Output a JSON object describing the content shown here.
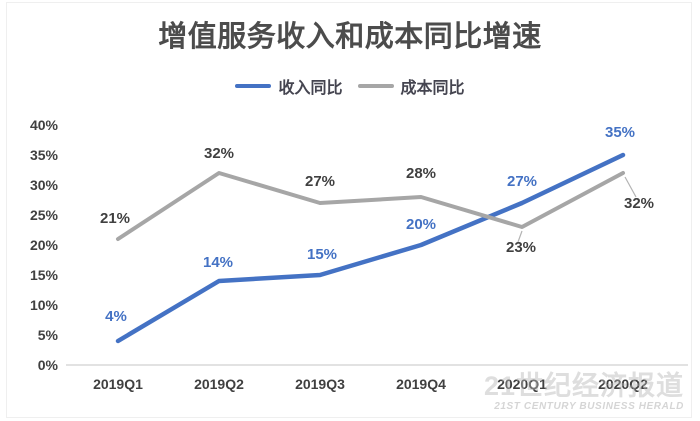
{
  "watermark": {
    "line1": "21世纪经济报道",
    "line2": "21ST CENTURY BUSINESS HERALD"
  },
  "chart_data": {
    "type": "line",
    "title": "增值服务收入和成本同比增速",
    "categories": [
      "2019Q1",
      "2019Q2",
      "2019Q3",
      "2019Q4",
      "2020Q1",
      "2020Q2"
    ],
    "series": [
      {
        "name": "收入同比",
        "color": "#4472C4",
        "label_color": "#4472C4",
        "values": [
          4,
          14,
          15,
          20,
          27,
          35
        ],
        "labels": [
          "4%",
          "14%",
          "15%",
          "20%",
          "27%",
          "35%"
        ]
      },
      {
        "name": "成本同比",
        "color": "#A6A6A6",
        "label_color": "#404040",
        "values": [
          21,
          32,
          27,
          28,
          23,
          32
        ],
        "labels": [
          "21%",
          "32%",
          "27%",
          "28%",
          "23%",
          "32%"
        ]
      }
    ],
    "xlabel": "",
    "ylabel": "",
    "ylim": [
      0,
      40
    ],
    "ytick_step": 5,
    "ytick_suffix": "%",
    "grid": false,
    "legend_position": "top-center",
    "axis_color": "#D9D9D9",
    "tick_color": "#404040"
  }
}
